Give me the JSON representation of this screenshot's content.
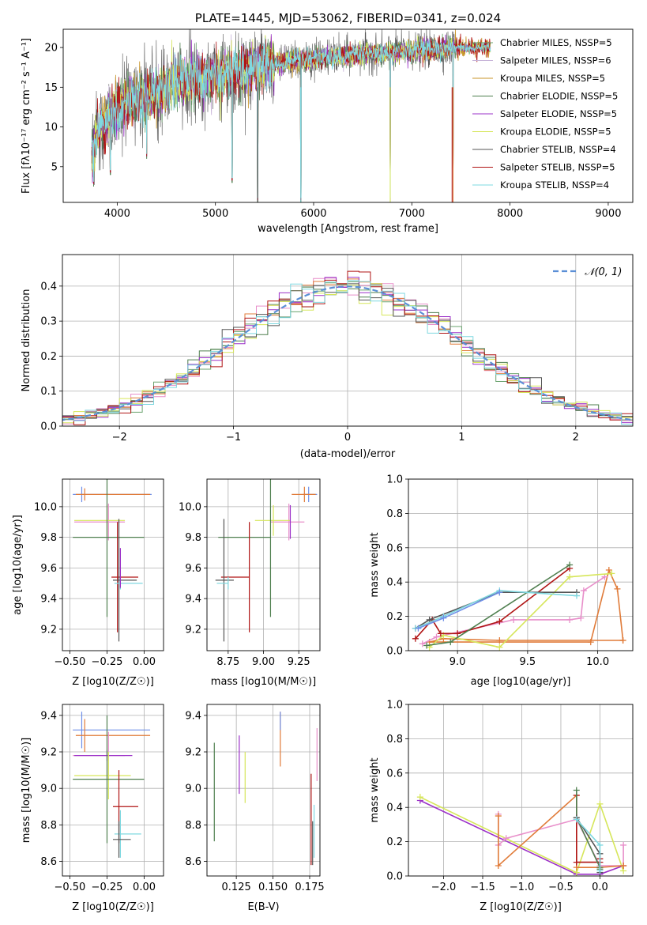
{
  "chart_data": [
    {
      "id": "spectrum",
      "type": "line",
      "title": "PLATE=1445, MJD=53062, FIBERID=0341, z=0.024",
      "xlabel": "wavelength [Angstrom, rest frame]",
      "ylabel": "Flux [fλ10⁻¹⁷ erg cm⁻² s⁻¹ A⁻¹]",
      "xlim": [
        3450,
        9250
      ],
      "ylim": [
        0.5,
        22.3
      ],
      "xticks": [
        4000,
        5000,
        6000,
        7000,
        8000,
        9000
      ],
      "yticks": [
        5,
        10,
        15,
        20
      ],
      "legend_position": "top-right",
      "series": [
        {
          "name": "Chabrier MILES, NSSP=5",
          "color": "#6aa36e",
          "ssp_count": 5
        },
        {
          "name": "Salpeter MILES, NSSP=6",
          "color": "#c7b3d8",
          "ssp_count": 6
        },
        {
          "name": "Kroupa MILES, NSSP=5",
          "color": "#c8962a",
          "ssp_count": 5
        },
        {
          "name": "Chabrier ELODIE, NSSP=5",
          "color": "#4f7f4f",
          "ssp_count": 5
        },
        {
          "name": "Salpeter ELODIE, NSSP=5",
          "color": "#9b30c8",
          "ssp_count": 5
        },
        {
          "name": "Kroupa ELODIE, NSSP=5",
          "color": "#d6e65a",
          "ssp_count": 5
        },
        {
          "name": "Chabrier STELIB, NSSP=4",
          "color": "#555555",
          "ssp_count": 4
        },
        {
          "name": "Salpeter STELIB, NSSP=5",
          "color": "#b01515",
          "ssp_count": 5
        },
        {
          "name": "Kroupa STELIB, NSSP=4",
          "color": "#7fd8e0",
          "ssp_count": 4
        }
      ],
      "continuum": [
        [
          3750,
          7
        ],
        [
          3800,
          9.5
        ],
        [
          3900,
          11
        ],
        [
          4000,
          12.5
        ],
        [
          4200,
          13.5
        ],
        [
          4500,
          15
        ],
        [
          4800,
          16
        ],
        [
          5000,
          16.5
        ],
        [
          5200,
          17
        ],
        [
          5500,
          17.8
        ],
        [
          6000,
          18.6
        ],
        [
          6500,
          19.2
        ],
        [
          7000,
          19.6
        ],
        [
          7500,
          20
        ],
        [
          7800,
          20
        ]
      ],
      "dips": [
        [
          3760,
          2.5
        ],
        [
          3930,
          4
        ],
        [
          4300,
          6
        ],
        [
          5170,
          3
        ],
        [
          5430,
          0.5
        ],
        [
          5870,
          0.5
        ],
        [
          6780,
          0.5
        ],
        [
          7420,
          0.5
        ]
      ]
    },
    {
      "id": "residuals",
      "type": "histogram",
      "xlabel": "(data-model)/error",
      "ylabel": "Normed distribution",
      "xlim": [
        -2.5,
        2.5
      ],
      "ylim": [
        0,
        0.49
      ],
      "xticks": [
        -2,
        -1,
        0,
        1,
        2
      ],
      "yticks": [
        0.0,
        0.1,
        0.2,
        0.3,
        0.4
      ],
      "legend": "𝒩(0, 1)",
      "grid": true
    },
    {
      "id": "age_vs_Z",
      "type": "errorbar",
      "xlabel": "Z [log10(Z/Z☉)]",
      "ylabel": "age  [log10(age/yr)]",
      "xlim": [
        -0.55,
        0.13
      ],
      "ylim": [
        9.06,
        10.18
      ],
      "xticks": [
        -0.5,
        -0.25,
        0.0
      ],
      "yticks": [
        9.2,
        9.4,
        9.6,
        9.8,
        10.0
      ],
      "points": [
        {
          "x": -0.42,
          "xerr": [
            0.06,
            0.47
          ],
          "y": 10.08,
          "yerr": 0.05,
          "color": "#6f8fe8"
        },
        {
          "x": -0.4,
          "xerr": [
            0.06,
            0.44
          ],
          "y": 10.08,
          "yerr": 0.04,
          "color": "#e07b39"
        },
        {
          "x": -0.24,
          "xerr": [
            0.23,
            0.11
          ],
          "y": 9.9,
          "yerr": 0.12,
          "color": "#e88fca"
        },
        {
          "x": -0.25,
          "xerr": [
            0.22,
            0.12
          ],
          "y": 9.91,
          "yerr": 0.1,
          "color": "#d6e65a"
        },
        {
          "x": -0.25,
          "xerr": [
            0.23,
            0.25
          ],
          "y": 9.8,
          "yerr": 0.52,
          "color": "#4f7f4f"
        },
        {
          "x": -0.18,
          "xerr": [
            0.04,
            0.14
          ],
          "y": 9.54,
          "yerr": 0.36,
          "color": "#b01515"
        },
        {
          "x": -0.17,
          "xerr": [
            0.04,
            0.12
          ],
          "y": 9.52,
          "yerr": 0.4,
          "color": "#555555"
        },
        {
          "x": -0.16,
          "xerr": [
            0.04,
            0.15
          ],
          "y": 9.5,
          "yerr": 0.04,
          "color": "#7fd8e0"
        },
        {
          "x": -0.16,
          "xerr": [
            0.0,
            0.0
          ],
          "y": 9.6,
          "yerr": 0.13,
          "color": "#9b30c8"
        }
      ]
    },
    {
      "id": "age_vs_mass",
      "type": "errorbar",
      "xlabel": "mass [log10(M/M☉)]",
      "ylabel": "",
      "xlim": [
        8.6,
        9.4
      ],
      "ylim": [
        9.06,
        10.18
      ],
      "xticks": [
        8.75,
        9.0,
        9.25
      ],
      "yticks": [
        9.2,
        9.4,
        9.6,
        9.8,
        10.0
      ],
      "points": [
        {
          "x": 9.32,
          "xerr": [
            0.04,
            0.06
          ],
          "y": 10.08,
          "yerr": 0.05,
          "color": "#6f8fe8"
        },
        {
          "x": 9.29,
          "xerr": [
            0.09,
            0.08
          ],
          "y": 10.08,
          "yerr": 0.05,
          "color": "#e07b39"
        },
        {
          "x": 9.18,
          "xerr": [
            0.13,
            0.11
          ],
          "y": 9.9,
          "yerr": 0.12,
          "color": "#e88fca"
        },
        {
          "x": 9.07,
          "xerr": [
            0.13,
            0.12
          ],
          "y": 9.91,
          "yerr": 0.1,
          "color": "#d6e65a"
        },
        {
          "x": 9.05,
          "xerr": [
            0.37,
            0.0
          ],
          "y": 9.8,
          "yerr": 0.52,
          "color": "#4f7f4f"
        },
        {
          "x": 8.9,
          "xerr": [
            0.2,
            0.0
          ],
          "y": 9.54,
          "yerr": 0.36,
          "color": "#b01515"
        },
        {
          "x": 8.72,
          "xerr": [
            0.06,
            0.07
          ],
          "y": 9.52,
          "yerr": 0.4,
          "color": "#555555"
        },
        {
          "x": 8.75,
          "xerr": [
            0.08,
            0.0
          ],
          "y": 9.5,
          "yerr": 0.04,
          "color": "#7fd8e0"
        },
        {
          "x": 9.19,
          "xerr": [
            0.0,
            0.0
          ],
          "y": 9.9,
          "yerr": 0.11,
          "color": "#9b30c8"
        }
      ]
    },
    {
      "id": "weight_vs_age",
      "type": "line",
      "xlabel": "age  [log10(age/yr)]",
      "ylabel": "mass weight",
      "xlim": [
        8.65,
        10.25
      ],
      "ylim": [
        0,
        1.0
      ],
      "xticks": [
        9.0,
        9.5,
        10.0
      ],
      "yticks": [
        0.0,
        0.2,
        0.4,
        0.6,
        0.8,
        1.0
      ],
      "series": [
        {
          "color": "#e07b39",
          "x": [
            10.18,
            10.14,
            10.08,
            9.95,
            8.8,
            8.9,
            9.3,
            10.18
          ],
          "y": [
            0.06,
            0.36,
            0.47,
            0.05,
            0.05,
            0.07,
            0.06,
            0.06
          ]
        },
        {
          "color": "#e88fca",
          "x": [
            8.75,
            8.85,
            9.4,
            9.8,
            9.88,
            9.9,
            10.05
          ],
          "y": [
            0.04,
            0.08,
            0.18,
            0.18,
            0.19,
            0.35,
            0.43
          ]
        },
        {
          "color": "#d6e65a",
          "x": [
            8.8,
            8.9,
            9.3,
            9.8,
            10.1
          ],
          "y": [
            0.02,
            0.09,
            0.02,
            0.43,
            0.45
          ]
        },
        {
          "color": "#b01515",
          "x": [
            8.7,
            8.82,
            8.88,
            9.0,
            9.3,
            9.8
          ],
          "y": [
            0.07,
            0.18,
            0.1,
            0.1,
            0.17,
            0.48
          ]
        },
        {
          "color": "#4f7f4f",
          "x": [
            8.78,
            8.95,
            9.8
          ],
          "y": [
            0.03,
            0.05,
            0.5
          ]
        },
        {
          "color": "#555555",
          "x": [
            8.7,
            8.8,
            9.3,
            9.85
          ],
          "y": [
            0.13,
            0.18,
            0.34,
            0.34
          ]
        },
        {
          "color": "#7fd8e0",
          "x": [
            8.7,
            8.9,
            9.3,
            9.85
          ],
          "y": [
            0.13,
            0.2,
            0.35,
            0.32
          ]
        },
        {
          "color": "#6f8fe8",
          "x": [
            8.72,
            8.9,
            9.3
          ],
          "y": [
            0.13,
            0.19,
            0.34
          ]
        }
      ]
    },
    {
      "id": "mass_vs_Z",
      "type": "errorbar",
      "xlabel": "Z [log10(Z/Z☉)]",
      "ylabel": "mass [log10(M/M☉)]",
      "xlim": [
        -0.55,
        0.13
      ],
      "ylim": [
        8.52,
        9.46
      ],
      "xticks": [
        -0.5,
        -0.25,
        0.0
      ],
      "yticks": [
        8.6,
        8.8,
        9.0,
        9.2,
        9.4
      ],
      "points": [
        {
          "x": -0.42,
          "xerr": [
            0.06,
            0.46
          ],
          "y": 9.32,
          "yerr": 0.1,
          "color": "#6f8fe8"
        },
        {
          "x": -0.4,
          "xerr": [
            0.06,
            0.44
          ],
          "y": 9.29,
          "yerr": 0.09,
          "color": "#e07b39"
        },
        {
          "x": -0.24,
          "xerr": [
            0.24,
            0.11
          ],
          "y": 9.18,
          "yerr": 0.13,
          "color": "#e88fca"
        },
        {
          "x": -0.25,
          "xerr": [
            0.22,
            0.17
          ],
          "y": 9.18,
          "yerr": 0.03,
          "color": "#9b30c8"
        },
        {
          "x": -0.24,
          "xerr": [
            0.23,
            0.15
          ],
          "y": 9.07,
          "yerr": 0.13,
          "color": "#d6e65a"
        },
        {
          "x": -0.25,
          "xerr": [
            0.23,
            0.25
          ],
          "y": 9.05,
          "yerr": 0.35,
          "color": "#4f7f4f"
        },
        {
          "x": -0.17,
          "xerr": [
            0.04,
            0.13
          ],
          "y": 8.9,
          "yerr": 0.2,
          "color": "#b01515"
        },
        {
          "x": -0.16,
          "xerr": [
            0.04,
            0.14
          ],
          "y": 8.75,
          "yerr": 0.13,
          "color": "#7fd8e0"
        },
        {
          "x": -0.17,
          "xerr": [
            0.04,
            0.08
          ],
          "y": 8.72,
          "yerr": 0.1,
          "color": "#555555"
        }
      ]
    },
    {
      "id": "mass_vs_EBV",
      "type": "errorbar",
      "xlabel": "E(B-V)",
      "ylabel": "",
      "xlim": [
        0.105,
        0.182
      ],
      "ylim": [
        8.52,
        9.46
      ],
      "xticks": [
        0.125,
        0.15,
        0.175
      ],
      "yticks": [
        8.6,
        8.8,
        9.0,
        9.2,
        9.4
      ],
      "points": [
        {
          "x": 0.11,
          "y": 9.0,
          "yerr": [
            0.29,
            0.25
          ],
          "color": "#4f7f4f"
        },
        {
          "x": 0.127,
          "y": 9.1,
          "yerr": [
            0.13,
            0.19
          ],
          "color": "#9b30c8"
        },
        {
          "x": 0.131,
          "y": 9.05,
          "yerr": [
            0.13,
            0.15
          ],
          "color": "#d6e65a"
        },
        {
          "x": 0.155,
          "y": 9.31,
          "yerr": [
            0.19,
            0.11
          ],
          "color": "#e07b39"
        },
        {
          "x": 0.155,
          "y": 9.4,
          "yerr": [
            0.08,
            0.02
          ],
          "color": "#6f8fe8"
        },
        {
          "x": 0.176,
          "y": 8.85,
          "yerr": [
            0.27,
            0.23
          ],
          "color": "#b01515"
        },
        {
          "x": 0.177,
          "y": 8.75,
          "yerr": [
            0.17,
            0.07
          ],
          "color": "#555555"
        },
        {
          "x": 0.178,
          "y": 8.75,
          "yerr": [
            0.13,
            0.16
          ],
          "color": "#7fd8e0"
        },
        {
          "x": 0.18,
          "y": 9.2,
          "yerr": [
            0.16,
            0.13
          ],
          "color": "#e88fca"
        }
      ]
    },
    {
      "id": "weight_vs_Z",
      "type": "line",
      "xlabel": "Z [log10(Z/Z☉)]",
      "ylabel": "mass weight",
      "xlim": [
        -2.45,
        0.42
      ],
      "ylim": [
        0,
        1.0
      ],
      "xticks": [
        -2.0,
        -1.5,
        -1.0,
        -0.5,
        0.0
      ],
      "yticks": [
        0.0,
        0.2,
        0.4,
        0.6,
        0.8,
        1.0
      ],
      "series": [
        {
          "color": "#9b30c8",
          "x": [
            -2.3,
            -0.3,
            0.0,
            0.3
          ],
          "y": [
            0.44,
            0.01,
            0.01,
            0.06
          ]
        },
        {
          "color": "#d6e65a",
          "x": [
            -2.3,
            -0.3,
            0.0,
            0.3
          ],
          "y": [
            0.46,
            0.02,
            0.42,
            0.03
          ]
        },
        {
          "color": "#e88fca",
          "x": [
            -1.3,
            -1.3,
            -1.2,
            -0.3,
            0.0,
            0.3,
            0.3
          ],
          "y": [
            0.36,
            0.18,
            0.22,
            0.33,
            0.06,
            0.06,
            0.18
          ]
        },
        {
          "color": "#e07b39",
          "x": [
            -1.3,
            -1.3,
            -0.3,
            -0.3,
            0.0,
            0.3,
            0.3
          ],
          "y": [
            0.35,
            0.06,
            0.47,
            0.05,
            0.05,
            0.06,
            0.06
          ]
        },
        {
          "color": "#b01515",
          "x": [
            -0.3,
            -0.3,
            0.0,
            0.0
          ],
          "y": [
            0.47,
            0.08,
            0.08,
            0.1
          ]
        },
        {
          "color": "#4f7f4f",
          "x": [
            -0.3,
            -0.3,
            0.0,
            0.0
          ],
          "y": [
            0.5,
            0.34,
            0.05,
            0.04
          ]
        },
        {
          "color": "#555555",
          "x": [
            -0.3,
            0.0,
            0.0
          ],
          "y": [
            0.34,
            0.13,
            0.02
          ]
        },
        {
          "color": "#7fd8e0",
          "x": [
            -0.3,
            0.0,
            0.0
          ],
          "y": [
            0.33,
            0.18,
            0.03
          ]
        }
      ]
    }
  ]
}
